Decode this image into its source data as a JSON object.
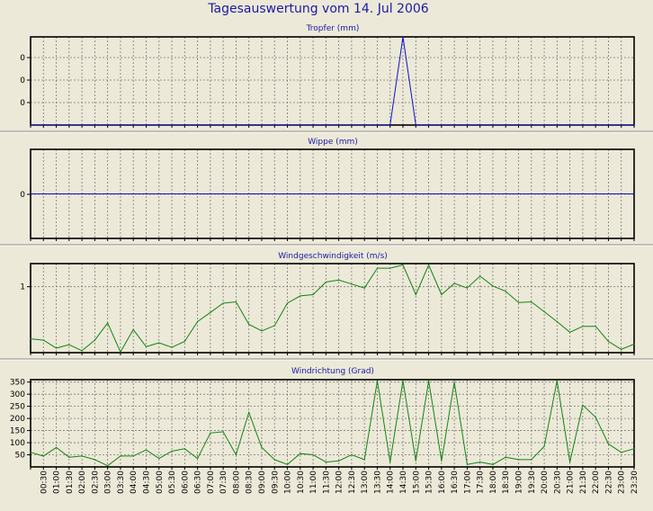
{
  "page_title": "Tagesauswertung vom 14. Jul 2006",
  "colors": {
    "background": "#ece9d8",
    "title_text": "#1a1aa6",
    "panel_title_text": "#1a1aa6",
    "plot_background": "#ece9d8",
    "grid": "#7a7a7a",
    "blue_series": "#1010c8",
    "green_series": "#128412"
  },
  "x_ticks": [
    "00:30",
    "01:00",
    "01:30",
    "02:00",
    "02:30",
    "03:00",
    "03:30",
    "04:00",
    "04:30",
    "05:00",
    "05:30",
    "06:00",
    "06:30",
    "07:00",
    "07:30",
    "08:00",
    "08:30",
    "09:00",
    "09:30",
    "10:00",
    "10:30",
    "11:00",
    "11:30",
    "12:00",
    "12:30",
    "13:00",
    "13:30",
    "14:00",
    "14:30",
    "15:00",
    "15:30",
    "16:00",
    "16:30",
    "17:00",
    "17:30",
    "18:00",
    "18:30",
    "19:00",
    "19:30",
    "20:00",
    "20:30",
    "21:00",
    "21:30",
    "22:00",
    "22:30",
    "23:00",
    "23:30"
  ],
  "chart_data": [
    {
      "type": "line",
      "title": "Tropfer (mm)",
      "y_tick_labels": [
        "0",
        "0",
        "0"
      ],
      "grid": true,
      "series": [
        {
          "color": "#1010c8",
          "values": [
            0,
            0,
            0,
            0,
            0,
            0,
            0,
            0,
            0,
            0,
            0,
            0,
            0,
            0,
            0,
            0,
            0,
            0,
            0,
            0,
            0,
            0,
            0,
            0,
            0,
            0,
            0,
            0,
            0,
            1,
            0,
            0,
            0,
            0,
            0,
            0,
            0,
            0,
            0,
            0,
            0,
            0,
            0,
            0,
            0,
            0,
            0,
            0
          ]
        }
      ],
      "ylim": [
        0,
        1
      ]
    },
    {
      "type": "line",
      "title": "Wippe (mm)",
      "y_tick_labels": [
        "0"
      ],
      "grid": true,
      "series": [
        {
          "color": "#1010c8",
          "values": [
            0,
            0,
            0,
            0,
            0,
            0,
            0,
            0,
            0,
            0,
            0,
            0,
            0,
            0,
            0,
            0,
            0,
            0,
            0,
            0,
            0,
            0,
            0,
            0,
            0,
            0,
            0,
            0,
            0,
            0,
            0,
            0,
            0,
            0,
            0,
            0,
            0,
            0,
            0,
            0,
            0,
            0,
            0,
            0,
            0,
            0,
            0,
            0
          ]
        }
      ],
      "ylim": [
        -1,
        1
      ]
    },
    {
      "type": "line",
      "title": "Windgeschwindigkeit (m/s)",
      "y_tick_labels": [
        "1"
      ],
      "yticks": [
        1
      ],
      "grid": true,
      "series": [
        {
          "color": "#128412",
          "values": [
            0.21,
            0.19,
            0.07,
            0.12,
            0.03,
            0.19,
            0.45,
            0.01,
            0.35,
            0.09,
            0.15,
            0.08,
            0.17,
            0.47,
            0.61,
            0.75,
            0.77,
            0.43,
            0.33,
            0.41,
            0.75,
            0.86,
            0.88,
            1.07,
            1.1,
            1.04,
            0.98,
            1.28,
            1.28,
            1.33,
            0.88,
            1.33,
            0.88,
            1.05,
            0.98,
            1.16,
            1.01,
            0.93,
            0.76,
            0.77,
            0.62,
            0.47,
            0.31,
            0.4,
            0.4,
            0.17,
            0.05,
            0.13
          ]
        }
      ],
      "ylim": [
        0,
        1.35
      ]
    },
    {
      "type": "line",
      "title": "Windrichtung (Grad)",
      "y_tick_labels": [
        "50",
        "100",
        "150",
        "200",
        "250",
        "300",
        "350"
      ],
      "yticks": [
        50,
        100,
        150,
        200,
        250,
        300,
        350
      ],
      "grid": true,
      "series": [
        {
          "color": "#128412",
          "values": [
            60,
            45,
            80,
            40,
            45,
            30,
            5,
            45,
            45,
            70,
            35,
            65,
            75,
            35,
            140,
            145,
            50,
            225,
            80,
            30,
            10,
            55,
            50,
            20,
            25,
            50,
            30,
            355,
            20,
            355,
            25,
            355,
            25,
            350,
            10,
            20,
            10,
            40,
            30,
            30,
            85,
            355,
            20,
            255,
            205,
            95,
            60,
            75
          ]
        }
      ],
      "ylim": [
        0,
        360
      ]
    }
  ]
}
